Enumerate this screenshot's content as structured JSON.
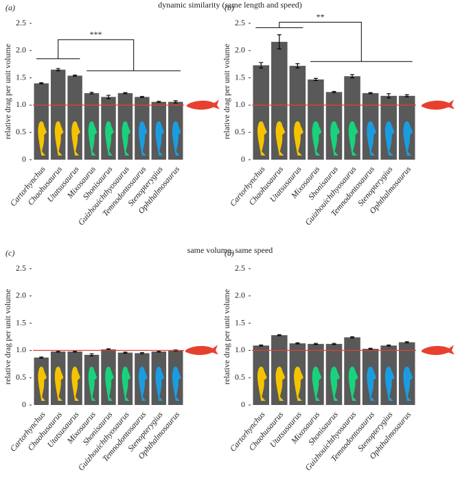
{
  "headers": [
    "dynamic similarity (same length and speed)",
    "same volume, same speed"
  ],
  "chart_data": [
    {
      "type": "bar",
      "panel_label": "(a)",
      "ylabel": "relative drag per unit volume",
      "categories": [
        "Cartorhynchus",
        "Chaohusaurus",
        "Utatsusaurus",
        "Mixosaurus",
        "Shonisaurus",
        "Guizhouichthyosaurus",
        "Temnodontosaurus",
        "Stenopterygius",
        "Ophthalmosaurus"
      ],
      "values": [
        1.4,
        1.65,
        1.54,
        1.22,
        1.15,
        1.22,
        1.15,
        1.06,
        1.06
      ],
      "errors": [
        0.01,
        0.02,
        0.01,
        0.015,
        0.03,
        0.01,
        0.01,
        0.01,
        0.02
      ],
      "color": "#595959",
      "reference_line": 1,
      "reference_color": "#e8402f",
      "icon_colors": [
        "#f5c400",
        "#f5c400",
        "#f5c400",
        "#19d37c",
        "#19d37c",
        "#19d37c",
        "#1a9de0",
        "#1a9de0",
        "#1a9de0"
      ],
      "annotation": "***",
      "ylim": [
        0,
        2.5
      ],
      "yticks": [
        0,
        0.5,
        {
          "value": 1,
          "label": "1.0"
        },
        1.5,
        {
          "value": 2,
          "label": "2.0"
        },
        2.5
      ]
    },
    {
      "type": "bar",
      "panel_label": "(b)",
      "ylabel": "relative drag per unit volume",
      "categories": [
        "Cartorhynchus",
        "Chaohusaurus",
        "Utatsusaurus",
        "Mixosaurus",
        "Shonisaurus",
        "Guizhouichthyosaurus",
        "Temnodontosaurus",
        "Stenopterygius",
        "Ophthalmosaurus"
      ],
      "values": [
        1.73,
        2.16,
        1.72,
        1.47,
        1.24,
        1.53,
        1.22,
        1.17,
        1.17
      ],
      "errors": [
        0.05,
        0.13,
        0.04,
        0.02,
        0.01,
        0.03,
        0.01,
        0.04,
        0.02
      ],
      "color": "#595959",
      "reference_line": 1,
      "reference_color": "#e8402f",
      "icon_colors": [
        "#f5c400",
        "#f5c400",
        "#f5c400",
        "#19d37c",
        "#19d37c",
        "#19d37c",
        "#1a9de0",
        "#1a9de0",
        "#1a9de0"
      ],
      "annotation": "**",
      "ylim": [
        0,
        2.5
      ],
      "yticks": [
        0,
        0.5,
        {
          "value": 1,
          "label": "1.0"
        },
        1.5,
        {
          "value": 2,
          "label": "2.0"
        },
        2.5
      ]
    },
    {
      "type": "bar",
      "panel_label": "(c)",
      "ylabel": "relative drag per unit volume",
      "categories": [
        "Cartorhynchus",
        "Chaohusaurus",
        "Utatsusaurus",
        "Mixosaurus",
        "Shonisaurus",
        "Guizhouichthyosaurus",
        "Temnodontosaurus",
        "Stenopterygius",
        "Ophthalmosaurus"
      ],
      "values": [
        0.87,
        0.98,
        0.98,
        0.92,
        1.02,
        0.96,
        0.95,
        0.98,
        1.0
      ],
      "errors": [
        0.01,
        0.01,
        0.01,
        0.02,
        0.01,
        0.01,
        0.01,
        0.01,
        0.01
      ],
      "color": "#595959",
      "reference_line": 1,
      "reference_color": "#e8402f",
      "icon_colors": [
        "#f5c400",
        "#f5c400",
        "#f5c400",
        "#19d37c",
        "#19d37c",
        "#19d37c",
        "#1a9de0",
        "#1a9de0",
        "#1a9de0"
      ],
      "ylim": [
        0,
        2.5
      ],
      "yticks": [
        0,
        0.5,
        {
          "value": 1,
          "label": "1.0"
        },
        1.5,
        {
          "value": 2,
          "label": "2.0"
        },
        2.5
      ]
    },
    {
      "type": "bar",
      "panel_label": "(d)",
      "ylabel": "relative drag per unit volume",
      "categories": [
        "Cartorhynchus",
        "Chaohusaurus",
        "Utatsusaurus",
        "Mixosaurus",
        "Shonisaurus",
        "Guizhouichthyosaurus",
        "Temnodontosaurus",
        "Stenopterygius",
        "Ophthalmosaurus"
      ],
      "values": [
        1.09,
        1.28,
        1.13,
        1.12,
        1.12,
        1.24,
        1.03,
        1.09,
        1.15
      ],
      "errors": [
        0.01,
        0.01,
        0.01,
        0.01,
        0.01,
        0.01,
        0.01,
        0.01,
        0.01
      ],
      "color": "#595959",
      "reference_line": 1,
      "reference_color": "#e8402f",
      "icon_colors": [
        "#f5c400",
        "#f5c400",
        "#f5c400",
        "#19d37c",
        "#19d37c",
        "#19d37c",
        "#1a9de0",
        "#1a9de0",
        "#1a9de0"
      ],
      "ylim": [
        0,
        2.5
      ],
      "yticks": [
        0,
        0.5,
        {
          "value": 1,
          "label": "1.0"
        },
        1.5,
        {
          "value": 2,
          "label": "2.0"
        },
        2.5
      ]
    }
  ]
}
